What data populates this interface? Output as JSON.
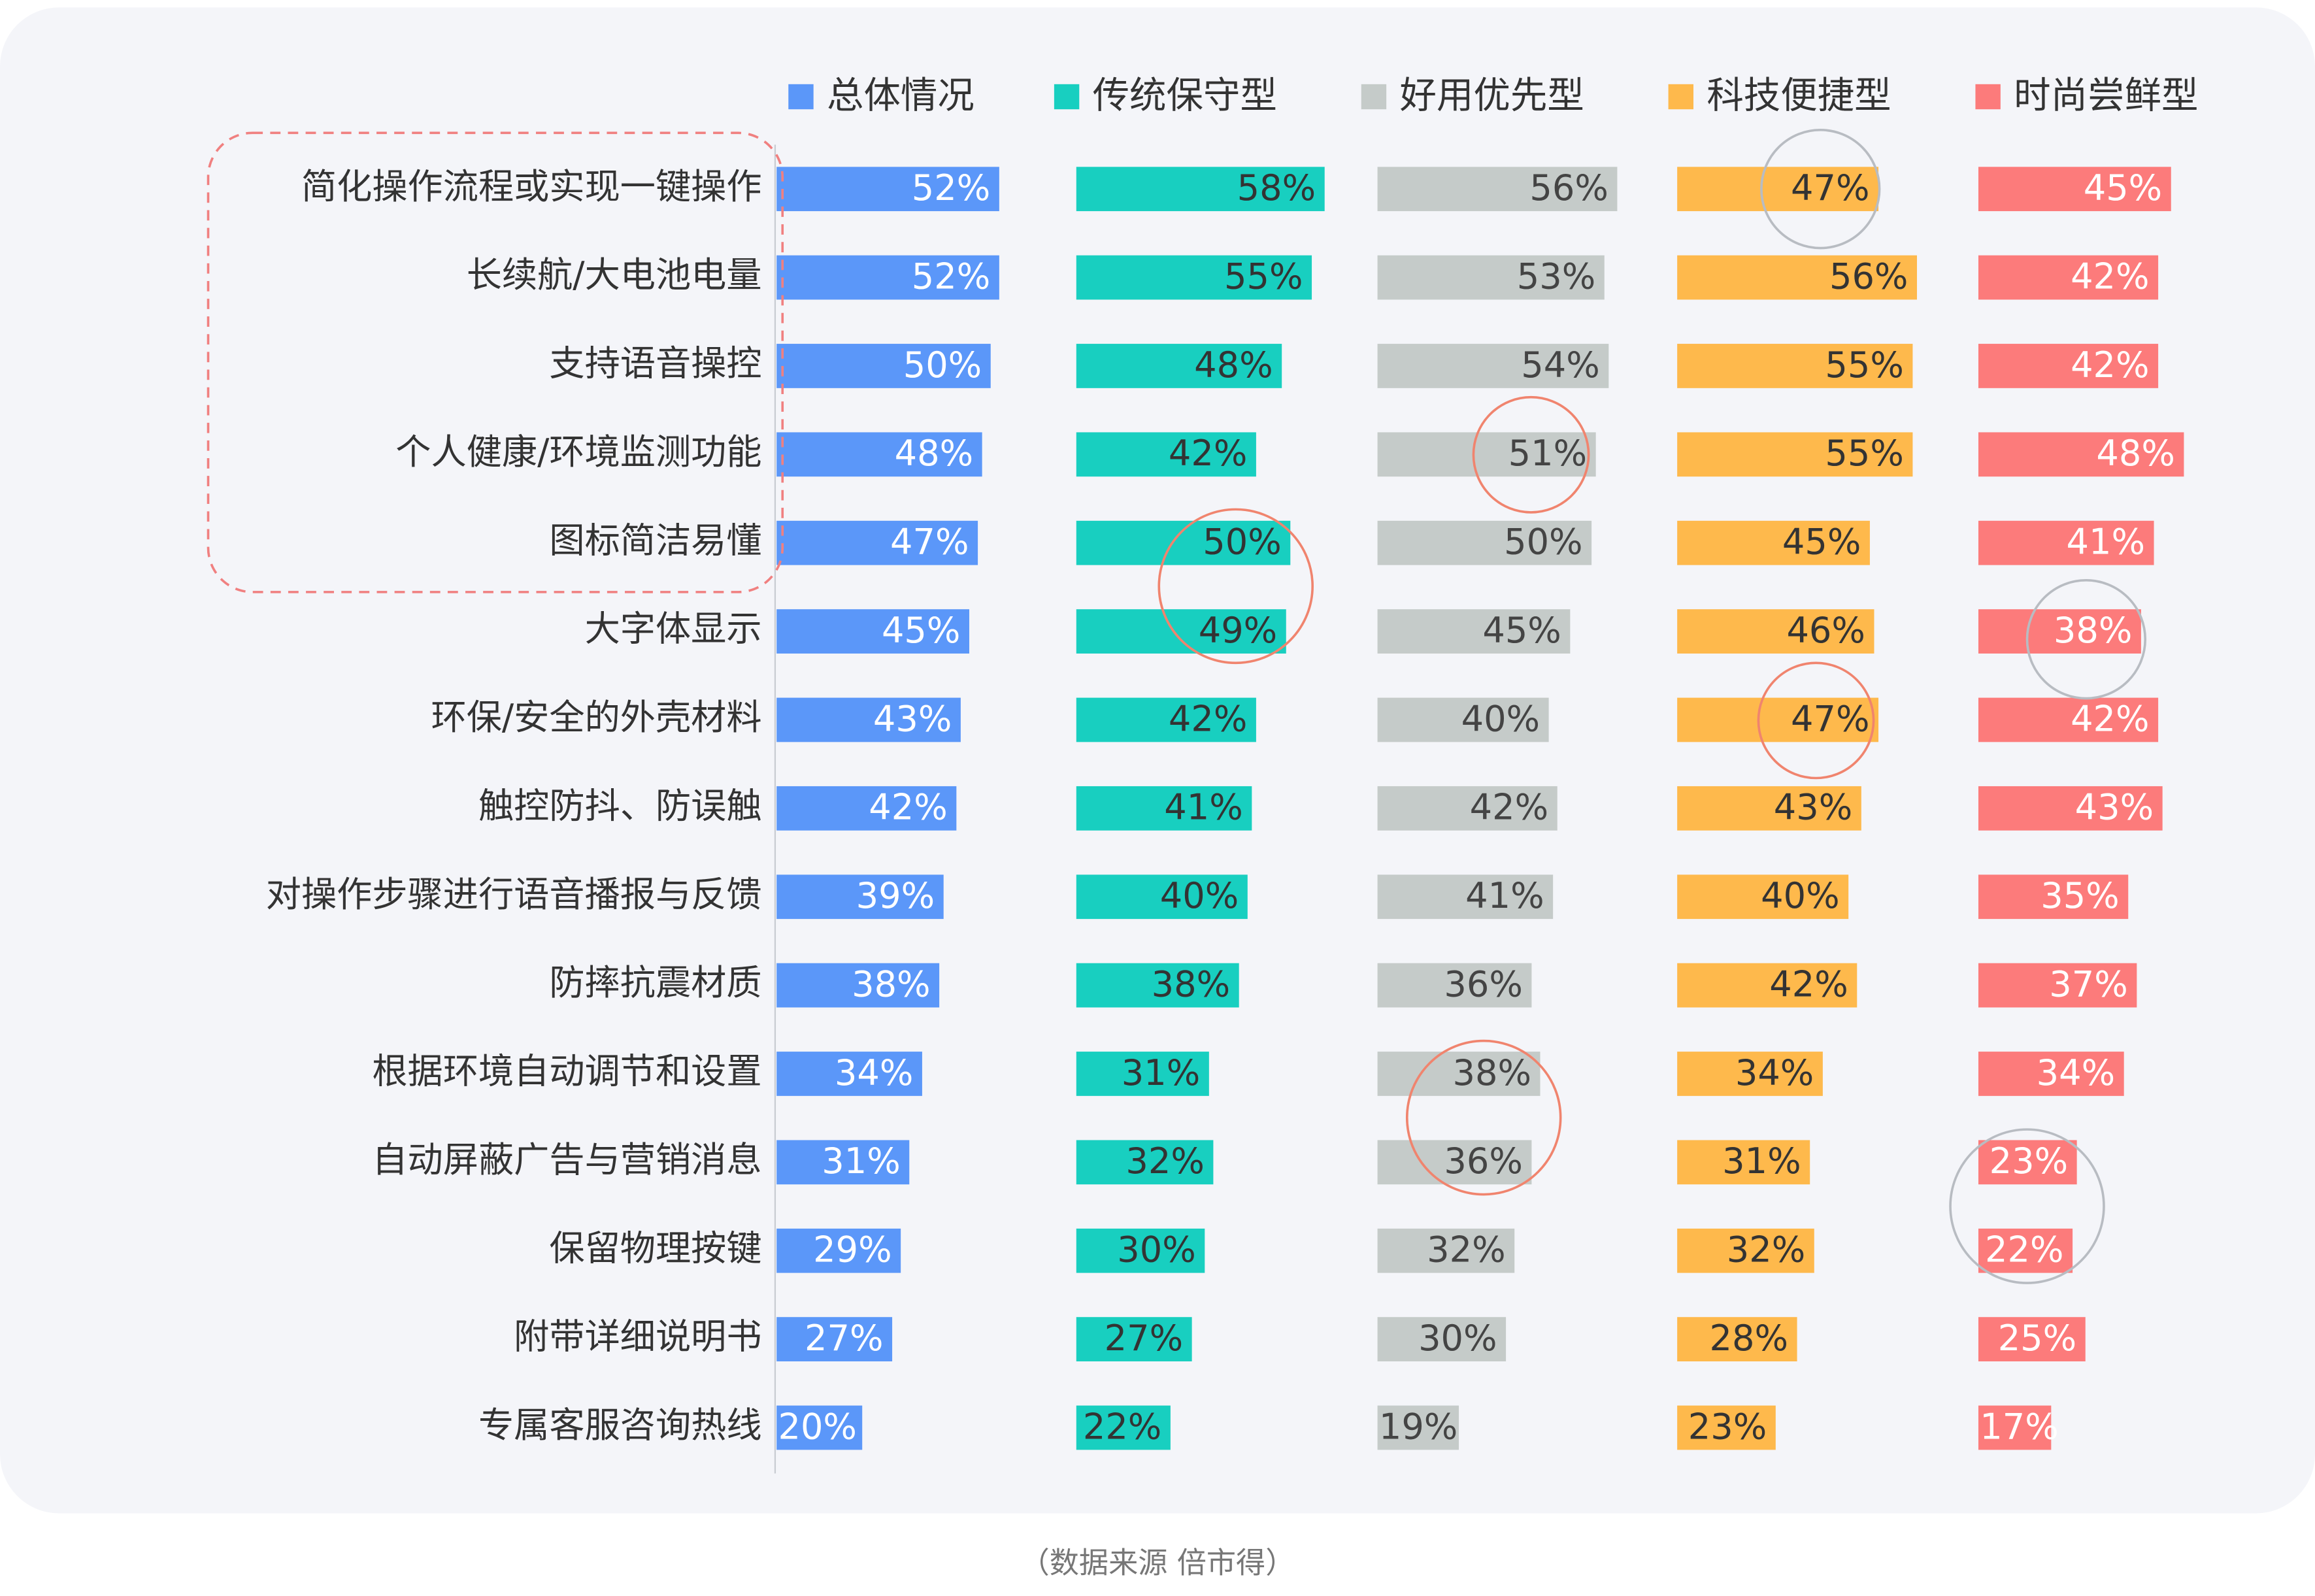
{
  "chart_data": {
    "type": "bar",
    "categories": [
      "简化操作流程或实现一键操作",
      "长续航/大电池电量",
      "支持语音操控",
      "个人健康/环境监测功能",
      "图标简洁易懂",
      "大字体显示",
      "环保/安全的外壳材料",
      "触控防抖、防误触",
      "对操作步骤进行语音播报与反馈",
      "防摔抗震材质",
      "根据环境自动调节和设置",
      "自动屏蔽广告与营销消息",
      "保留物理按键",
      "附带详细说明书",
      "专属客服咨询热线"
    ],
    "series": [
      {
        "name": "总体情况",
        "color": "#5b97f9",
        "values": [
          52,
          52,
          50,
          48,
          47,
          45,
          43,
          42,
          39,
          38,
          34,
          31,
          29,
          27,
          20
        ],
        "value_labels": [
          "52%",
          "52%",
          "50%",
          "48%",
          "47%",
          "45%",
          "43%",
          "42%",
          "39%",
          "38%",
          "34%",
          "31%",
          "29%",
          "27%",
          "20%"
        ]
      },
      {
        "name": "传统保守型",
        "color": "#18cfc0",
        "values": [
          58,
          55,
          48,
          42,
          50,
          49,
          42,
          41,
          40,
          38,
          31,
          32,
          30,
          27,
          22
        ],
        "value_labels": [
          "58%",
          "55%",
          "48%",
          "42%",
          "50%",
          "49%",
          "42%",
          "41%",
          "40%",
          "38%",
          "31%",
          "32%",
          "30%",
          "27%",
          "22%"
        ]
      },
      {
        "name": "好用优先型",
        "color": "#c5cbc9",
        "values": [
          56,
          53,
          54,
          51,
          50,
          45,
          40,
          42,
          41,
          36,
          38,
          36,
          32,
          30,
          19
        ],
        "value_labels": [
          "56%",
          "53%",
          "54%",
          "51%",
          "50%",
          "45%",
          "40%",
          "42%",
          "41%",
          "36%",
          "38%",
          "36%",
          "32%",
          "30%",
          "19%"
        ]
      },
      {
        "name": "科技便捷型",
        "color": "#feb94c",
        "values": [
          47,
          56,
          55,
          55,
          45,
          46,
          47,
          43,
          40,
          42,
          34,
          31,
          32,
          28,
          23
        ],
        "value_labels": [
          "47%",
          "56%",
          "55%",
          "55%",
          "45%",
          "46%",
          "47%",
          "43%",
          "40%",
          "42%",
          "34%",
          "31%",
          "32%",
          "28%",
          "23%"
        ]
      },
      {
        "name": "时尚尝鲜型",
        "color": "#fc7b7b",
        "values": [
          45,
          42,
          42,
          48,
          41,
          38,
          42,
          43,
          35,
          37,
          34,
          23,
          22,
          25,
          17
        ],
        "value_labels": [
          "45%",
          "42%",
          "42%",
          "48%",
          "41%",
          "38%",
          "42%",
          "43%",
          "35%",
          "37%",
          "34%",
          "23%",
          "22%",
          "25%",
          "17%"
        ]
      }
    ],
    "source": "（数据来源  倍市得）"
  }
}
